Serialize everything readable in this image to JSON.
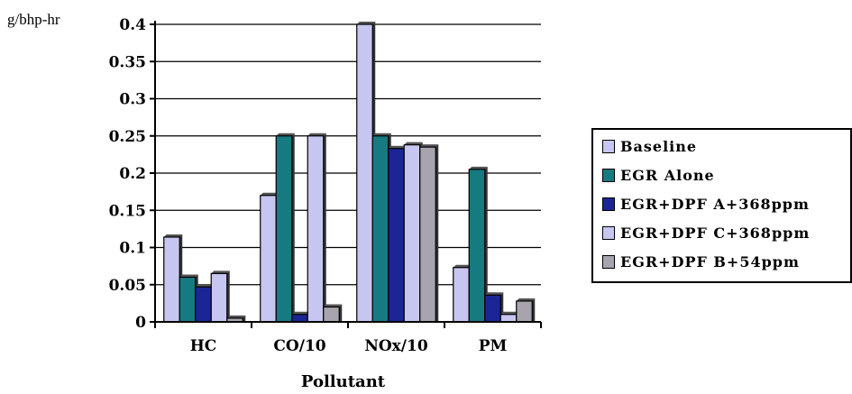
{
  "chart_data": {
    "type": "bar",
    "title": "",
    "ylabel": "g/bhp-hr",
    "xlabel": "Pollutant",
    "ylim": [
      0,
      0.4
    ],
    "ytick_step": 0.05,
    "ytick_labels": [
      "0",
      "0.05",
      "0.1",
      "0.15",
      "0.2",
      "0.25",
      "0.3",
      "0.35",
      "0.4"
    ],
    "categories": [
      "HC",
      "CO/10",
      "NOx/10",
      "PM"
    ],
    "series": [
      {
        "name": "Baseline",
        "color": "#c6c6f0",
        "values": [
          0.114,
          0.17,
          0.4,
          0.073
        ]
      },
      {
        "name": "EGR Alone",
        "color": "#167b80",
        "values": [
          0.06,
          0.25,
          0.25,
          0.205
        ]
      },
      {
        "name": "EGR+DPF A+368ppm",
        "color": "#1b2596",
        "values": [
          0.047,
          0.01,
          0.233,
          0.036
        ]
      },
      {
        "name": "EGR+DPF C+368ppm",
        "color": "#c6c6f0",
        "values": [
          0.065,
          0.25,
          0.238,
          0.01
        ]
      },
      {
        "name": "EGR+DPF B+54ppm",
        "color": "#a7a4ae",
        "values": [
          0.005,
          0.02,
          0.235,
          0.028
        ]
      }
    ],
    "legend_position": "right",
    "grid": "horizontal"
  }
}
